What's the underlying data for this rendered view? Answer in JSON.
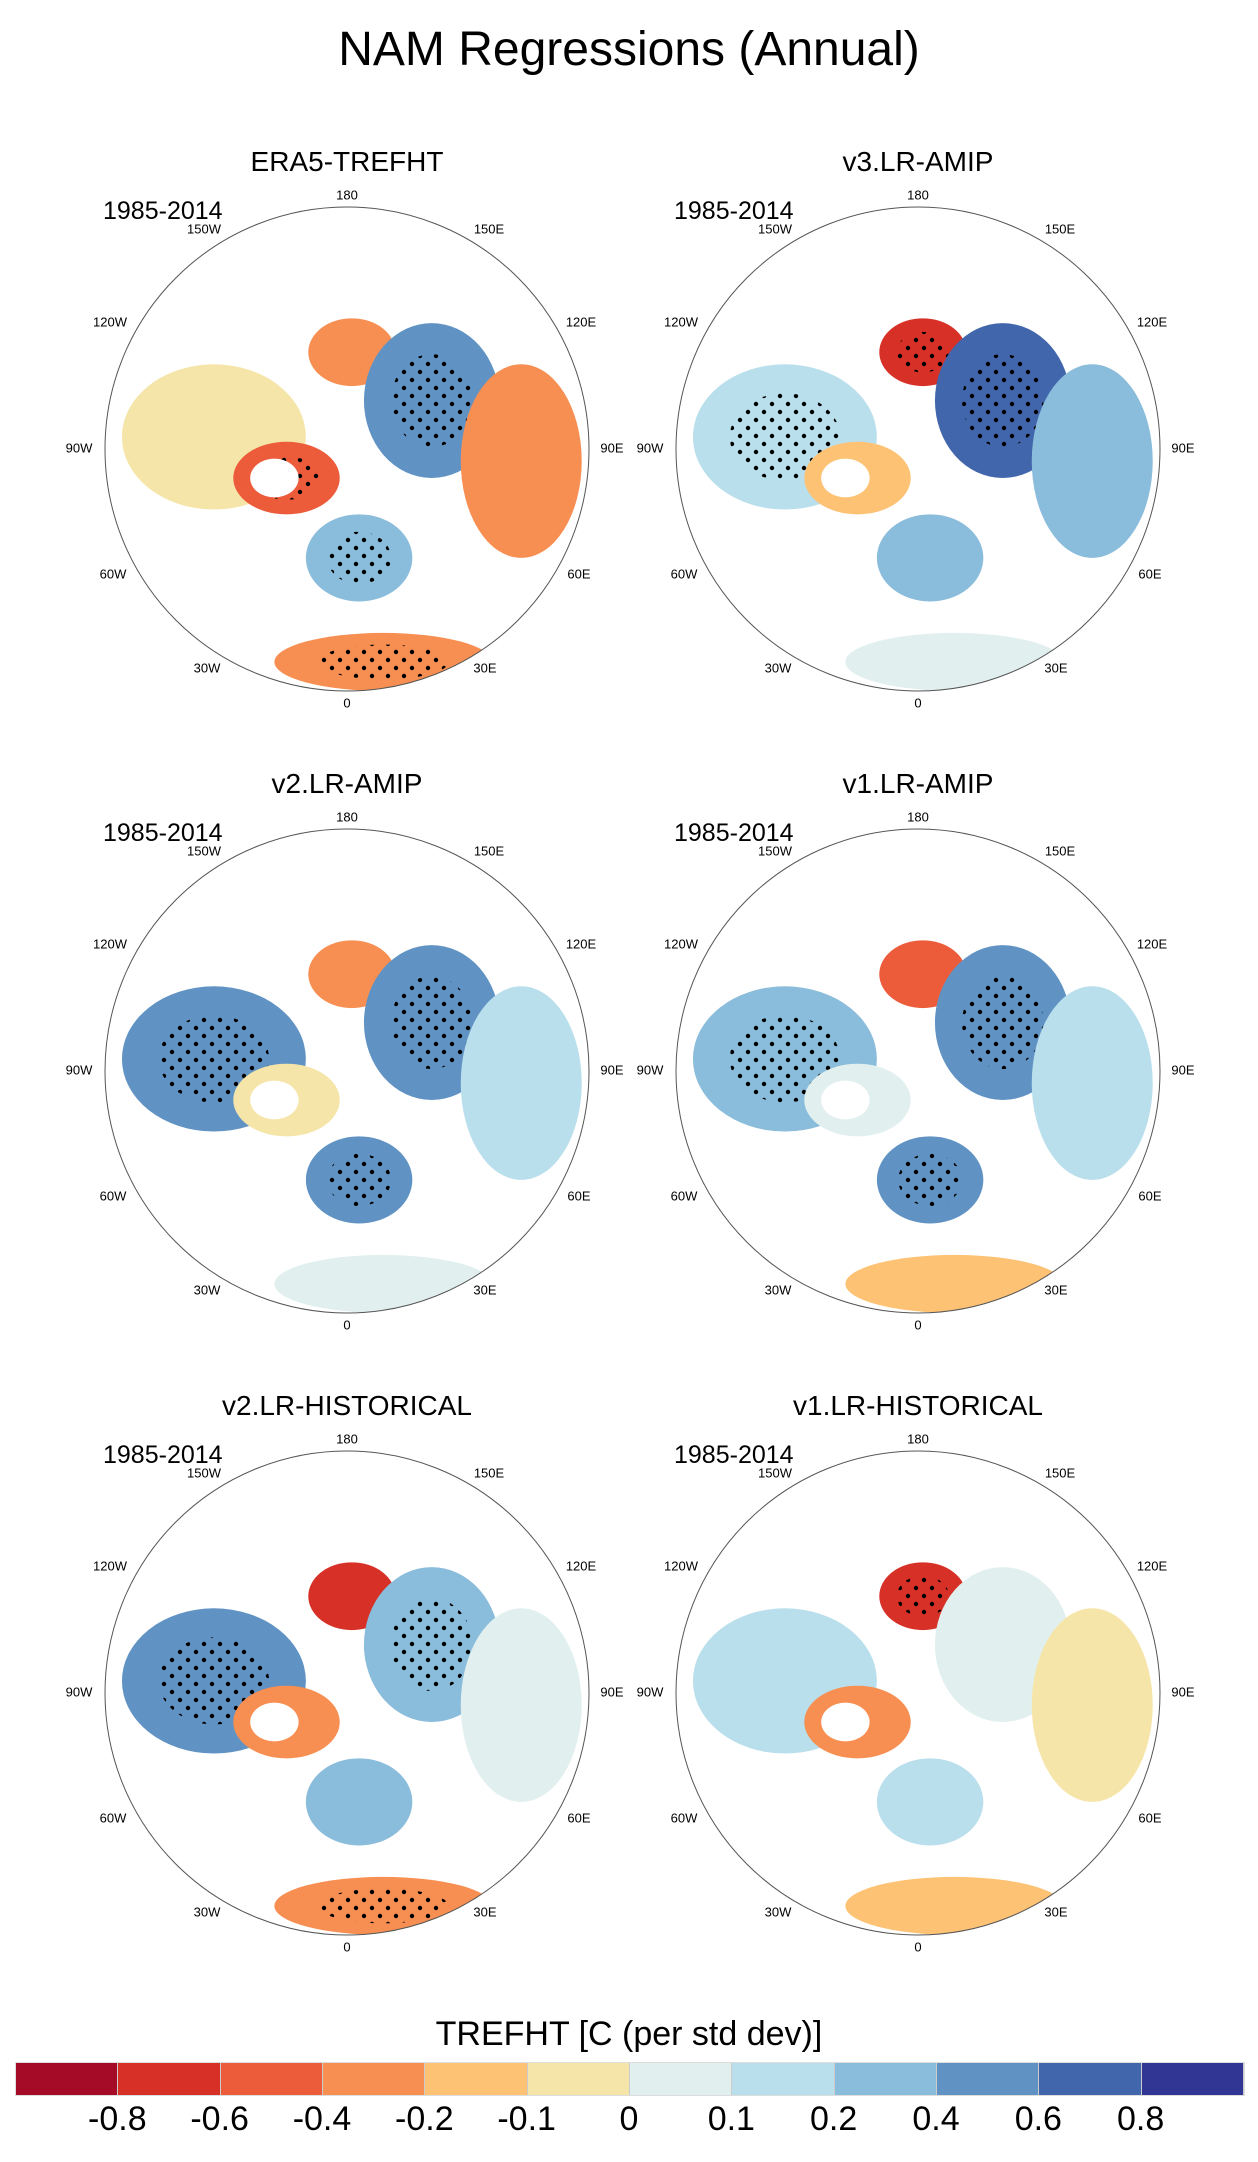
{
  "title": "NAM Regressions (Annual)",
  "chart_data": {
    "type": "heatmap",
    "projection": "north-polar-stereographic",
    "panels": [
      {
        "title": "ERA5-TREFHT",
        "period": "1985-2014"
      },
      {
        "title": "v3.LR-AMIP",
        "period": "1985-2014"
      },
      {
        "title": "v2.LR-AMIP",
        "period": "1985-2014"
      },
      {
        "title": "v1.LR-AMIP",
        "period": "1985-2014"
      },
      {
        "title": "v2.LR-HISTORICAL",
        "period": "1985-2014"
      },
      {
        "title": "v1.LR-HISTORICAL",
        "period": "1985-2014"
      }
    ],
    "lon_labels": [
      "180",
      "150E",
      "120E",
      "90E",
      "60E",
      "30E",
      "0",
      "30W",
      "60W",
      "90W",
      "120W",
      "150W"
    ],
    "colorbar": {
      "title": "TREFHT [C (per std dev)]",
      "levels": [
        "-0.8",
        "-0.6",
        "-0.4",
        "-0.2",
        "-0.1",
        "0",
        "0.1",
        "0.2",
        "0.4",
        "0.6",
        "0.8"
      ],
      "colors": [
        "#a50b26",
        "#d73027",
        "#ec5c3b",
        "#f88f52",
        "#fdc274",
        "#f6e5a8",
        "#e1f0ef",
        "#b9dfec",
        "#8abcdb",
        "#6093c4",
        "#4166ab",
        "#313695"
      ]
    }
  }
}
